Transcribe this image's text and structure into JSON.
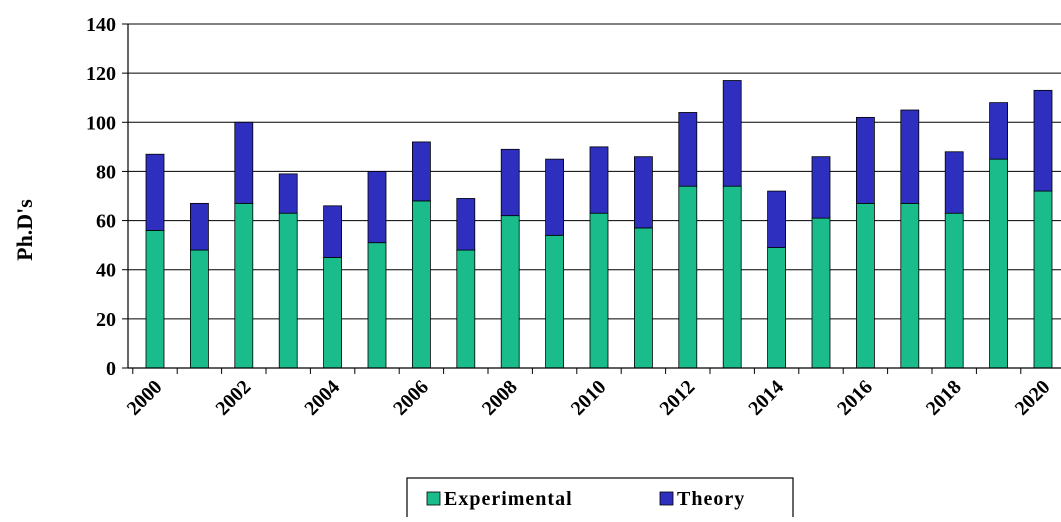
{
  "chart_data": {
    "type": "bar",
    "stacked": true,
    "categories": [
      "2000",
      "2001",
      "2002",
      "2003",
      "2004",
      "2005",
      "2006",
      "2007",
      "2008",
      "2009",
      "2010",
      "2011",
      "2012",
      "2013",
      "2014",
      "2015",
      "2016",
      "2017",
      "2018",
      "2019",
      "2020"
    ],
    "series": [
      {
        "name": "Experimental",
        "color": "#1abc8c",
        "values": [
          56,
          48,
          67,
          63,
          45,
          51,
          68,
          48,
          62,
          54,
          63,
          57,
          74,
          74,
          49,
          61,
          67,
          67,
          63,
          85,
          72
        ]
      },
      {
        "name": "Theory",
        "color": "#2f2fbf",
        "values": [
          31,
          19,
          33,
          16,
          21,
          29,
          24,
          21,
          27,
          31,
          27,
          29,
          30,
          43,
          23,
          25,
          35,
          38,
          25,
          23,
          41
        ]
      }
    ],
    "x_tick_labels": [
      "2000",
      "2002",
      "2004",
      "2006",
      "2008",
      "2010",
      "2012",
      "2014",
      "2016",
      "2018",
      "2020"
    ],
    "y_ticks": [
      0,
      20,
      40,
      60,
      80,
      100,
      120,
      140
    ],
    "ylim": [
      0,
      140
    ],
    "title": "",
    "xlabel": "",
    "ylabel": "Ph.D's",
    "grid": "horizontal",
    "legend": "bottom-center"
  }
}
